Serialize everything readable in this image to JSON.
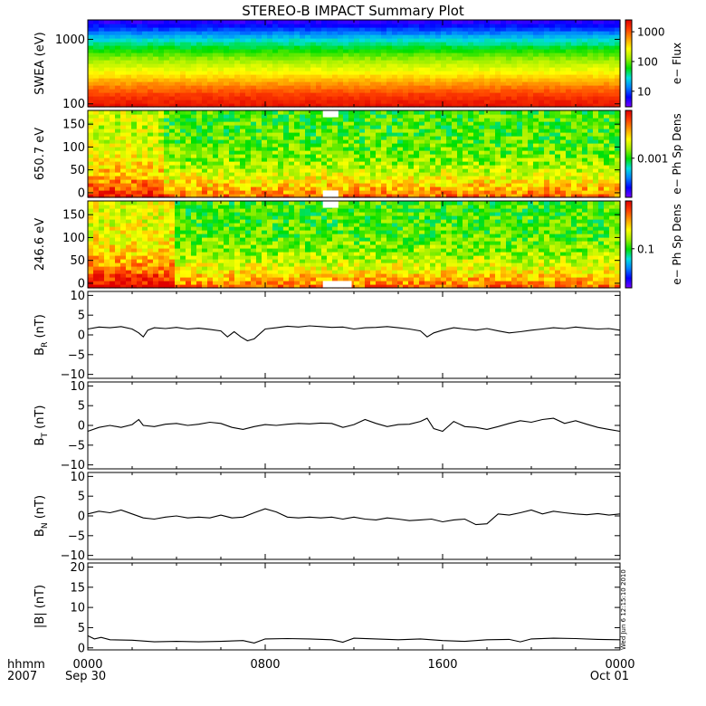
{
  "title": "STEREO-B IMPACT Summary Plot",
  "time_axis": {
    "row_labels": [
      "hhmm",
      "2007"
    ],
    "ticks": [
      {
        "hhmm": "0000",
        "date": "Sep 30"
      },
      {
        "hhmm": "0800",
        "date": ""
      },
      {
        "hhmm": "1600",
        "date": ""
      },
      {
        "hhmm": "0000",
        "date": "Oct 01"
      }
    ],
    "range_hours": [
      0,
      24
    ]
  },
  "timestamp": "Wed Jun  6 12:15:10 2010",
  "colors": {
    "colorscale": [
      "#7a00ff",
      "#0000ff",
      "#0080ff",
      "#00e0e0",
      "#00e000",
      "#a0f000",
      "#ffff00",
      "#ffa000",
      "#ff4000",
      "#e00000"
    ],
    "line": "#000000"
  },
  "chart_data": [
    {
      "type": "heatmap",
      "ylabel": "SWEA (eV)",
      "ylog": true,
      "ylim": [
        90,
        2000
      ],
      "yticks": [
        {
          "value": 100,
          "label": "100"
        },
        {
          "value": 1000,
          "label": "1000"
        }
      ],
      "colorbar": {
        "label": "e− Flux",
        "log": true,
        "range": [
          3,
          2500
        ],
        "ticks": [
          {
            "value": 10,
            "label": "10"
          },
          {
            "value": 100,
            "label": "100"
          },
          {
            "value": 1000,
            "label": "1000"
          }
        ]
      },
      "profile": [
        {
          "y": 100,
          "c": 0.96
        },
        {
          "y": 140,
          "c": 0.9
        },
        {
          "y": 200,
          "c": 0.8
        },
        {
          "y": 300,
          "c": 0.68
        },
        {
          "y": 500,
          "c": 0.55
        },
        {
          "y": 700,
          "c": 0.45
        },
        {
          "y": 1000,
          "c": 0.33
        },
        {
          "y": 1400,
          "c": 0.18
        },
        {
          "y": 2000,
          "c": 0.05
        }
      ]
    },
    {
      "type": "heatmap",
      "ylabel": "650.7 eV",
      "ylim": [
        -10,
        180
      ],
      "yticks": [
        {
          "value": 0,
          "label": "0"
        },
        {
          "value": 50,
          "label": "50"
        },
        {
          "value": 100,
          "label": "100"
        },
        {
          "value": 150,
          "label": "150"
        }
      ],
      "colorbar": {
        "label": "e− Ph Sp Dens",
        "ticks": [
          {
            "value": 0.45,
            "label": "0.001"
          }
        ]
      },
      "gaps": [
        {
          "x0": 10.6,
          "x1": 11.3,
          "y0": 165,
          "y1": 180
        },
        {
          "x0": 10.6,
          "x1": 11.3,
          "y0": -10,
          "y1": 5
        }
      ]
    },
    {
      "type": "heatmap",
      "ylabel": "246.6 eV",
      "ylim": [
        -10,
        180
      ],
      "yticks": [
        {
          "value": 0,
          "label": "0"
        },
        {
          "value": 50,
          "label": "50"
        },
        {
          "value": 100,
          "label": "100"
        },
        {
          "value": 150,
          "label": "150"
        }
      ],
      "colorbar": {
        "label": "e− Ph Sp Dens",
        "ticks": [
          {
            "value": 0.45,
            "label": "0.1"
          }
        ]
      },
      "gaps": [
        {
          "x0": 10.6,
          "x1": 11.3,
          "y0": 165,
          "y1": 180
        },
        {
          "x0": 10.6,
          "x1": 11.9,
          "y0": -10,
          "y1": 5
        }
      ]
    },
    {
      "type": "line",
      "ylabel": "B_R (nT)",
      "sub": "R",
      "ylim": [
        -11,
        11
      ],
      "yticks": [
        {
          "value": -10,
          "label": "−10"
        },
        {
          "value": -5,
          "label": "−5"
        },
        {
          "value": 0,
          "label": "0"
        },
        {
          "value": 5,
          "label": "5"
        },
        {
          "value": 10,
          "label": "10"
        }
      ],
      "x": [
        0,
        0.5,
        1,
        1.5,
        2,
        2.3,
        2.5,
        2.7,
        3,
        3.5,
        4,
        4.5,
        5,
        5.5,
        6,
        6.3,
        6.6,
        6.9,
        7.2,
        7.5,
        7.8,
        8,
        8.5,
        9,
        9.5,
        10,
        10.5,
        11,
        11.5,
        12,
        12.5,
        13,
        13.5,
        14,
        14.5,
        15,
        15.3,
        15.6,
        16,
        16.5,
        17,
        17.5,
        18,
        18.5,
        19,
        19.5,
        20,
        20.5,
        21,
        21.5,
        22,
        22.5,
        23,
        23.5,
        24
      ],
      "y": [
        1.5,
        2.0,
        1.8,
        2.1,
        1.5,
        0.5,
        -0.5,
        1.2,
        1.8,
        1.6,
        1.9,
        1.5,
        1.7,
        1.4,
        1.0,
        -0.5,
        0.8,
        -0.5,
        -1.5,
        -1.0,
        0.5,
        1.5,
        1.8,
        2.2,
        2.0,
        2.3,
        2.1,
        1.9,
        2.0,
        1.5,
        1.8,
        1.9,
        2.1,
        1.8,
        1.5,
        1.0,
        -0.5,
        0.5,
        1.2,
        1.8,
        1.5,
        1.2,
        1.6,
        1.0,
        0.5,
        0.8,
        1.2,
        1.5,
        1.8,
        1.6,
        2.0,
        1.7,
        1.5,
        1.6,
        1.2
      ]
    },
    {
      "type": "line",
      "ylabel": "B_T (nT)",
      "sub": "T",
      "ylim": [
        -11,
        11
      ],
      "yticks": [
        {
          "value": -10,
          "label": "−10"
        },
        {
          "value": -5,
          "label": "−5"
        },
        {
          "value": 0,
          "label": "0"
        },
        {
          "value": 5,
          "label": "5"
        },
        {
          "value": 10,
          "label": "10"
        }
      ],
      "x": [
        0,
        0.5,
        1,
        1.5,
        2,
        2.3,
        2.5,
        3,
        3.5,
        4,
        4.5,
        5,
        5.5,
        6,
        6.5,
        7,
        7.5,
        8,
        8.5,
        9,
        9.5,
        10,
        10.5,
        11,
        11.5,
        12,
        12.5,
        13,
        13.5,
        14,
        14.5,
        15,
        15.3,
        15.6,
        16,
        16.5,
        17,
        17.5,
        18,
        18.5,
        19,
        19.5,
        20,
        20.5,
        21,
        21.5,
        22,
        22.5,
        23,
        23.5,
        24
      ],
      "y": [
        -1.5,
        -0.5,
        0.0,
        -0.5,
        0.2,
        1.5,
        0.0,
        -0.3,
        0.3,
        0.5,
        0.0,
        0.3,
        0.8,
        0.5,
        -0.5,
        -1.0,
        -0.3,
        0.2,
        0.0,
        0.3,
        0.5,
        0.4,
        0.6,
        0.5,
        -0.5,
        0.2,
        1.5,
        0.5,
        -0.3,
        0.2,
        0.3,
        1.0,
        1.8,
        -0.8,
        -1.5,
        1.0,
        -0.3,
        -0.5,
        -1.0,
        -0.3,
        0.5,
        1.2,
        0.8,
        1.5,
        1.8,
        0.5,
        1.2,
        0.3,
        -0.5,
        -1.0,
        -1.5
      ]
    },
    {
      "type": "line",
      "ylabel": "B_N (nT)",
      "sub": "N",
      "ylim": [
        -11,
        11
      ],
      "yticks": [
        {
          "value": -10,
          "label": "−10"
        },
        {
          "value": -5,
          "label": "−5"
        },
        {
          "value": 0,
          "label": "0"
        },
        {
          "value": 5,
          "label": "5"
        },
        {
          "value": 10,
          "label": "10"
        }
      ],
      "x": [
        0,
        0.5,
        1,
        1.5,
        2,
        2.5,
        3,
        3.5,
        4,
        4.5,
        5,
        5.5,
        6,
        6.5,
        7,
        7.5,
        8,
        8.5,
        9,
        9.5,
        10,
        10.5,
        11,
        11.5,
        12,
        12.5,
        13,
        13.5,
        14,
        14.5,
        15,
        15.5,
        16,
        16.5,
        17,
        17.5,
        18,
        18.5,
        19,
        19.5,
        20,
        20.5,
        21,
        21.5,
        22,
        22.5,
        23,
        23.5,
        24
      ],
      "y": [
        0.5,
        1.2,
        0.8,
        1.5,
        0.5,
        -0.5,
        -0.8,
        -0.3,
        0.0,
        -0.5,
        -0.3,
        -0.5,
        0.2,
        -0.5,
        -0.3,
        0.8,
        1.8,
        1.0,
        -0.3,
        -0.5,
        -0.3,
        -0.5,
        -0.3,
        -0.8,
        -0.3,
        -0.8,
        -1.0,
        -0.5,
        -0.8,
        -1.2,
        -1.0,
        -0.8,
        -1.5,
        -1.0,
        -0.8,
        -2.2,
        -2.0,
        0.5,
        0.2,
        0.8,
        1.5,
        0.5,
        1.2,
        0.8,
        0.5,
        0.3,
        0.6,
        0.2,
        0.5
      ]
    },
    {
      "type": "line",
      "ylabel": "|B| (nT)",
      "sub": "",
      "ylim": [
        -0.5,
        21
      ],
      "yticks": [
        {
          "value": 0,
          "label": "0"
        },
        {
          "value": 5,
          "label": "5"
        },
        {
          "value": 10,
          "label": "10"
        },
        {
          "value": 15,
          "label": "15"
        },
        {
          "value": 20,
          "label": "20"
        }
      ],
      "x": [
        0,
        0.3,
        0.6,
        1,
        2,
        3,
        4,
        5,
        6,
        7,
        7.5,
        8,
        9,
        10,
        11,
        11.5,
        12,
        13,
        14,
        15,
        16,
        17,
        18,
        19,
        19.5,
        20,
        21,
        22,
        23,
        24
      ],
      "y": [
        3.0,
        2.2,
        2.6,
        2.0,
        1.9,
        1.5,
        1.6,
        1.5,
        1.6,
        1.8,
        1.2,
        2.2,
        2.3,
        2.2,
        2.0,
        1.4,
        2.4,
        2.2,
        2.0,
        2.2,
        1.8,
        1.6,
        2.0,
        2.1,
        1.5,
        2.2,
        2.4,
        2.3,
        2.1,
        2.0
      ]
    }
  ]
}
